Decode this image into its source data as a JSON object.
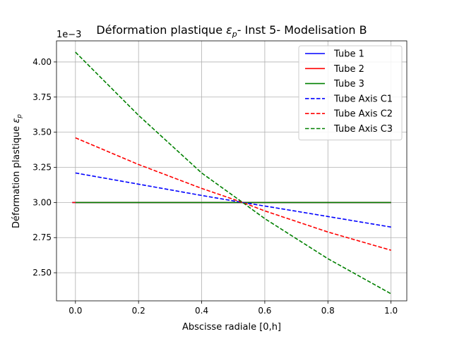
{
  "chart_data": {
    "type": "line",
    "title_main": "Déformation plastique ",
    "title_symbol": "ε",
    "title_sub": "p",
    "title_rest": "- Inst 5- Modelisation B",
    "xlabel": "Abscisse radiale [0,h]",
    "ylabel_main": "Déformation plastique ",
    "ylabel_symbol": "ε",
    "ylabel_sub": "p",
    "offset_text": "1e−3",
    "xlim": [
      -0.06,
      1.05
    ],
    "ylim": [
      2.3,
      4.15
    ],
    "xticks": [
      0.0,
      0.2,
      0.4,
      0.6,
      0.8,
      1.0
    ],
    "xtick_labels": [
      "0.0",
      "0.2",
      "0.4",
      "0.6",
      "0.8",
      "1.0"
    ],
    "yticks": [
      2.5,
      2.75,
      3.0,
      3.25,
      3.5,
      3.75,
      4.0
    ],
    "ytick_labels": [
      "2.50",
      "2.75",
      "3.00",
      "3.25",
      "3.50",
      "3.75",
      "4.00"
    ],
    "grid": true,
    "legend_position": "top-right",
    "series": [
      {
        "name": "Tube 1",
        "color": "#0000ff",
        "dash": "solid",
        "x": [
          -0.01,
          1.0
        ],
        "y": [
          3.0,
          3.0
        ]
      },
      {
        "name": "Tube 2",
        "color": "#ff0000",
        "dash": "solid",
        "x": [
          -0.01,
          1.0
        ],
        "y": [
          3.0,
          3.0
        ]
      },
      {
        "name": "Tube 3",
        "color": "#008000",
        "dash": "solid",
        "x": [
          0.0,
          1.0
        ],
        "y": [
          3.0,
          3.0
        ]
      },
      {
        "name": "Tube Axis C1",
        "color": "#0000ff",
        "dash": "dashed",
        "x": [
          0.0,
          0.2,
          0.4,
          0.53,
          0.6,
          0.8,
          1.0
        ],
        "y": [
          3.21,
          3.13,
          3.05,
          3.0,
          2.975,
          2.9,
          2.825
        ]
      },
      {
        "name": "Tube Axis C2",
        "color": "#ff0000",
        "dash": "dashed",
        "x": [
          0.0,
          0.2,
          0.4,
          0.53,
          0.6,
          0.8,
          1.0
        ],
        "y": [
          3.46,
          3.27,
          3.1,
          3.0,
          2.94,
          2.79,
          2.66
        ]
      },
      {
        "name": "Tube Axis C3",
        "color": "#008000",
        "dash": "dashed",
        "x": [
          0.0,
          0.2,
          0.4,
          0.53,
          0.6,
          0.8,
          1.0
        ],
        "y": [
          4.07,
          3.62,
          3.21,
          3.0,
          2.885,
          2.6,
          2.35
        ]
      }
    ]
  }
}
